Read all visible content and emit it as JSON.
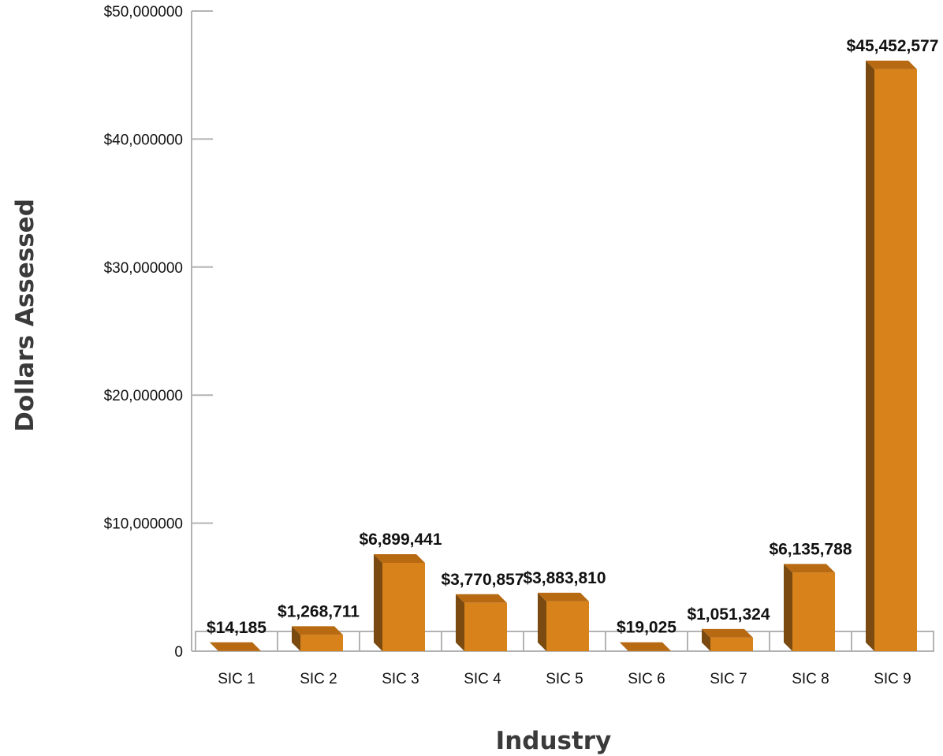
{
  "chart_data": {
    "type": "bar",
    "title": "",
    "xlabel": "Industry",
    "ylabel": "Dollars  Assessed",
    "ylim": [
      0,
      50000000
    ],
    "yticks": [
      0,
      10000000,
      20000000,
      30000000,
      40000000,
      50000000
    ],
    "ytick_labels": [
      "0",
      "$10,000000",
      "$20,000000",
      "$30,000000",
      "$40,000000",
      "$50,000000"
    ],
    "categories": [
      "SIC 1",
      "SIC 2",
      "SIC 3",
      "SIC 4",
      "SIC 5",
      "SIC 6",
      "SIC 7",
      "SIC 8",
      "SIC 9"
    ],
    "values": [
      14185,
      1268711,
      6899441,
      3770857,
      3883810,
      19025,
      1051324,
      6135788,
      45452577
    ],
    "data_labels": [
      "$14,185",
      "$1,268,711",
      "$6,899,441",
      "$3,770,857",
      "$3,883,810",
      "$19,025",
      "$1,051,324",
      "$6,135,788",
      "$45,452,577"
    ],
    "grid": false,
    "legend": "none",
    "style": "3d",
    "colors": {
      "bar_front": "#D8821C",
      "bar_side": "#7A4A10",
      "bar_top": "#B86A12",
      "axis": "#b3b3b3"
    }
  }
}
